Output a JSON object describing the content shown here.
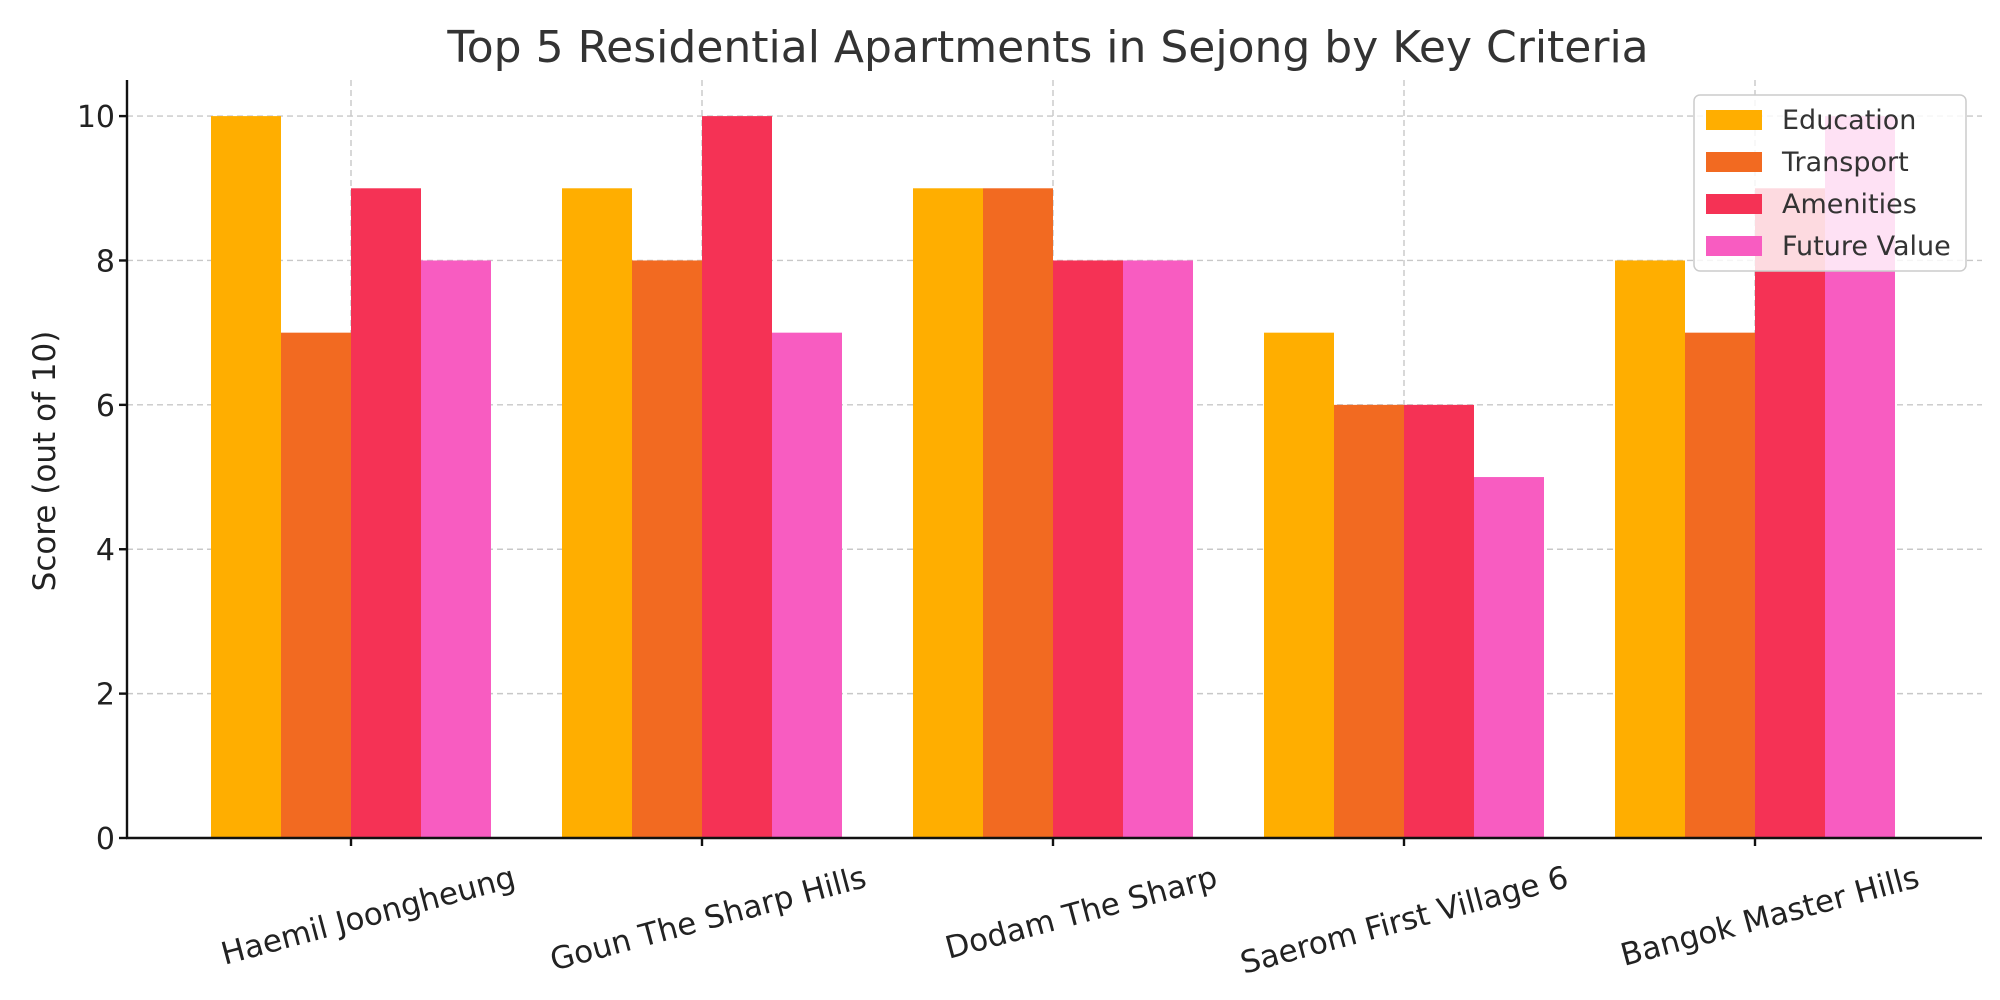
{
  "chart_data": {
    "type": "bar",
    "title": "Top 5 Residential Apartments in Sejong by Key Criteria",
    "xlabel": "",
    "ylabel": "Score (out of 10)",
    "ylim": [
      0,
      10.5
    ],
    "yticks": [
      "0",
      "2",
      "4",
      "6",
      "8",
      "10"
    ],
    "grid": true,
    "legend_position": "top-right",
    "categories": [
      "Haemil Joongheung",
      "Goun The Sharp Hills",
      "Dodam The Sharp",
      "Saerom First Village 6",
      "Bangok Master Hills"
    ],
    "series": [
      {
        "name": "Education",
        "color": "#FFAE00",
        "values": [
          10,
          9,
          9,
          7,
          8
        ]
      },
      {
        "name": "Transport",
        "color": "#F26A21",
        "values": [
          7,
          8,
          9,
          6,
          7
        ]
      },
      {
        "name": "Amenities",
        "color": "#F53255",
        "values": [
          9,
          10,
          8,
          6,
          9
        ]
      },
      {
        "name": "Future Value",
        "color": "#F85CC1",
        "values": [
          8,
          7,
          8,
          5,
          10
        ]
      }
    ]
  }
}
